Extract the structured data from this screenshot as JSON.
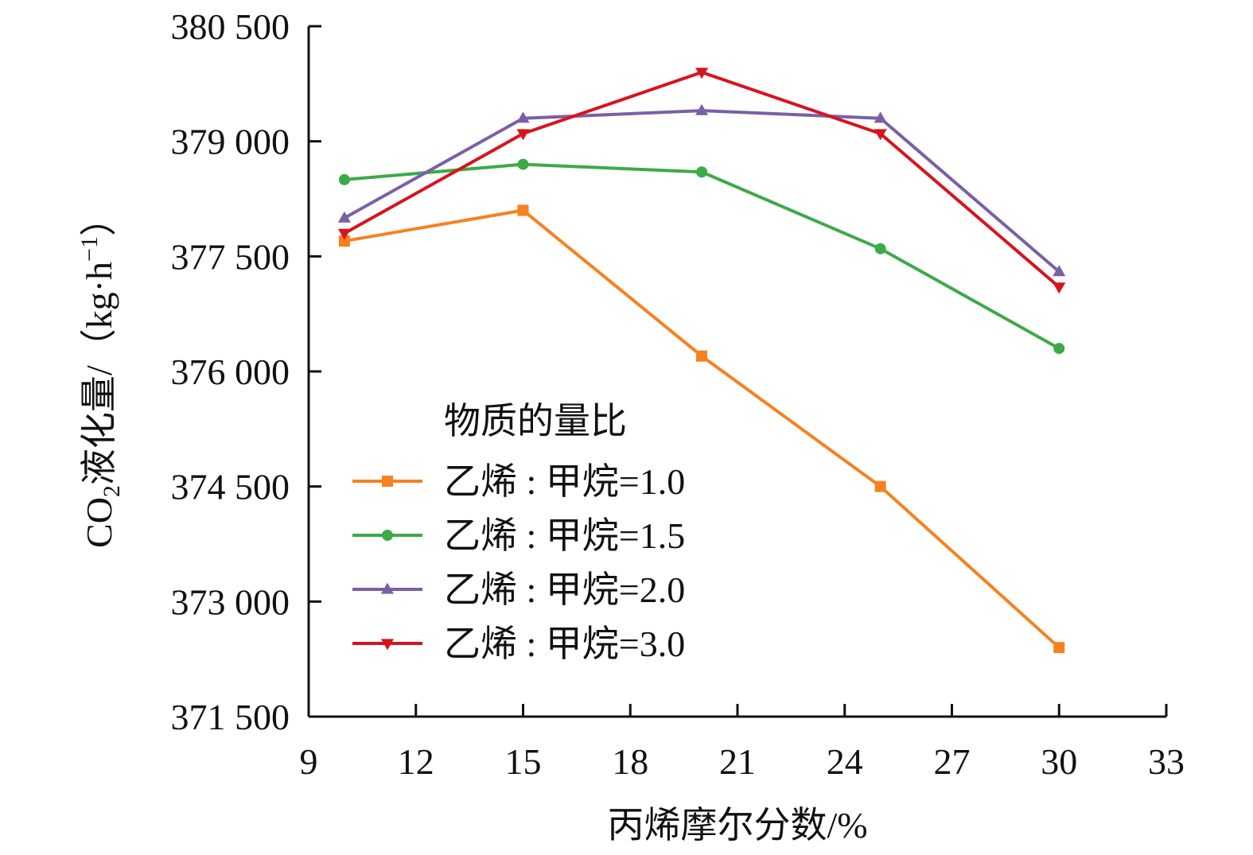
{
  "chart_data": {
    "type": "line",
    "title": "",
    "xlabel": "丙烯摩尔分数/%",
    "ylabel_main": "CO",
    "ylabel_sub": "2",
    "ylabel_rest": "液化量/（kg·h",
    "ylabel_sup": "−1",
    "ylabel_end": "）",
    "xlim": [
      9,
      33
    ],
    "ylim": [
      371500,
      380500
    ],
    "xticks": [
      9,
      12,
      15,
      18,
      21,
      24,
      27,
      30,
      33
    ],
    "xtick_labels": [
      "9",
      "12",
      "15",
      "18",
      "21",
      "24",
      "27",
      "30",
      "33"
    ],
    "yticks": [
      371500,
      373000,
      374500,
      376000,
      377500,
      379000,
      380500
    ],
    "ytick_labels": [
      "371 500",
      "373 000",
      "374 500",
      "376 000",
      "377 500",
      "379 000",
      "380 500"
    ],
    "grid": false,
    "legend_title": "物质的量比",
    "legend_position": "lower-left",
    "series": [
      {
        "name": "乙烯 : 甲烷=1.0",
        "color": "#F5821F",
        "marker": "square",
        "x": [
          10,
          15,
          20,
          25,
          30
        ],
        "y": [
          377700,
          378100,
          376200,
          374500,
          372400
        ]
      },
      {
        "name": "乙烯 : 甲烷=1.5",
        "color": "#3DAA48",
        "marker": "circle",
        "x": [
          10,
          15,
          20,
          25,
          30
        ],
        "y": [
          378500,
          378700,
          378600,
          377600,
          376300
        ]
      },
      {
        "name": "乙烯 : 甲烷=2.0",
        "color": "#7B5FA6",
        "marker": "triangle-up",
        "x": [
          10,
          15,
          20,
          25,
          30
        ],
        "y": [
          378000,
          379300,
          379400,
          379300,
          377300
        ]
      },
      {
        "name": "乙烯 : 甲烷=3.0",
        "color": "#D7141E",
        "marker": "triangle-down",
        "x": [
          10,
          15,
          20,
          25,
          30
        ],
        "y": [
          377800,
          379100,
          379900,
          379100,
          377100
        ]
      }
    ]
  }
}
